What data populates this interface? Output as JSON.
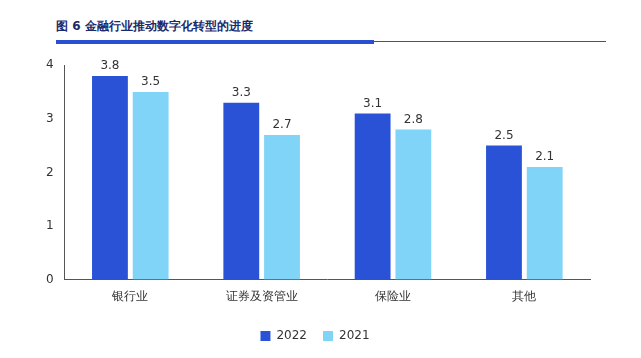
{
  "chart_data": {
    "type": "bar",
    "title": "图 6 金融行业推动数字化转型的进度",
    "categories": [
      "银行业",
      "证券及资管业",
      "保险业",
      "其他"
    ],
    "series": [
      {
        "name": "2022",
        "color": "#2a52d6",
        "values": [
          3.8,
          3.3,
          3.1,
          2.5
        ]
      },
      {
        "name": "2021",
        "color": "#7fd4f8",
        "values": [
          3.5,
          2.7,
          2.8,
          2.1
        ]
      }
    ],
    "ylim": [
      0,
      4
    ],
    "yticks": [
      0,
      1,
      2,
      3,
      4
    ],
    "grid": false,
    "data_labels": true,
    "legend": "bottom"
  }
}
